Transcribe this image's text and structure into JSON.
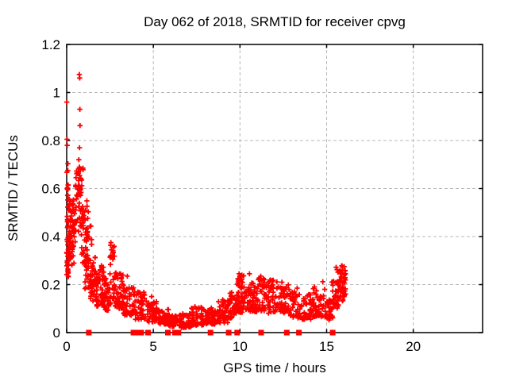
{
  "page": {
    "background": "#ffffff"
  },
  "chart_data": {
    "type": "scatter",
    "title": "Day 062 of 2018, SRMTID for receiver cpvg",
    "xlabel": "GPS time / hours",
    "ylabel": "SRMTID / TECUs",
    "xlim": [
      0,
      24
    ],
    "ylim": [
      0,
      1.2
    ],
    "xticks": [
      0,
      5,
      10,
      15,
      20
    ],
    "xtick_labels": [
      "0",
      "5",
      "10",
      "15",
      "20"
    ],
    "yticks": [
      0,
      0.2,
      0.4,
      0.6,
      0.8,
      1,
      1.2
    ],
    "ytick_labels": [
      "0",
      "0.2",
      "0.4",
      "0.6",
      "0.8",
      "1",
      "1.2"
    ],
    "grid": true,
    "legend": "none",
    "marker": "plus",
    "marker_color": "#ff0000",
    "grid_color": "#b8b8b8",
    "axis_color": "#000000",
    "series_name": "SRMTID",
    "notable_points": [
      [
        0.01,
        0.96
      ],
      [
        0.02,
        0.805
      ],
      [
        0.03,
        0.78
      ],
      [
        0.73,
        1.075
      ],
      [
        0.75,
        1.06
      ],
      [
        0.76,
        0.93
      ],
      [
        0.77,
        0.862
      ],
      [
        0.74,
        0.77
      ],
      [
        0.7,
        0.72
      ],
      [
        1.28,
        0.305
      ],
      [
        2.55,
        0.375
      ],
      [
        2.58,
        0.345
      ],
      [
        2.62,
        0.315
      ],
      [
        3.05,
        0.245
      ],
      [
        3.5,
        0.235
      ],
      [
        4.45,
        0.168
      ],
      [
        4.9,
        0.15
      ],
      [
        9.95,
        0.245
      ],
      [
        10.05,
        0.232
      ],
      [
        10.55,
        0.245
      ],
      [
        11.2,
        0.235
      ],
      [
        11.35,
        0.225
      ],
      [
        11.9,
        0.218
      ],
      [
        12.42,
        0.21
      ],
      [
        13.3,
        0.185
      ],
      [
        14.3,
        0.19
      ],
      [
        14.78,
        0.212
      ],
      [
        15.3,
        0.21
      ],
      [
        15.55,
        0.272
      ],
      [
        15.6,
        0.262
      ],
      [
        15.65,
        0.252
      ],
      [
        15.9,
        0.275
      ]
    ],
    "point_clusters_format": "[x_start, x_end, y_min, y_max, count, skew_toward_min]",
    "point_clusters": [
      [
        0.0,
        0.1,
        0.22,
        0.62,
        40,
        1.0
      ],
      [
        0.0,
        0.08,
        0.55,
        0.72,
        8,
        1.0
      ],
      [
        0.05,
        0.45,
        0.28,
        0.56,
        50,
        1.0
      ],
      [
        0.15,
        0.55,
        0.35,
        0.52,
        30,
        1.0
      ],
      [
        0.5,
        0.95,
        0.38,
        0.7,
        45,
        0.85
      ],
      [
        0.68,
        0.82,
        0.58,
        0.7,
        12,
        1.0
      ],
      [
        0.85,
        1.25,
        0.28,
        0.55,
        40,
        1.1
      ],
      [
        1.05,
        1.45,
        0.18,
        0.45,
        35,
        1.2
      ],
      [
        1.35,
        1.75,
        0.13,
        0.32,
        40,
        1.3
      ],
      [
        1.7,
        2.15,
        0.11,
        0.28,
        55,
        1.4
      ],
      [
        2.15,
        2.55,
        0.09,
        0.24,
        40,
        1.3
      ],
      [
        2.5,
        2.8,
        0.14,
        0.38,
        30,
        1.6
      ],
      [
        2.8,
        3.25,
        0.1,
        0.25,
        45,
        1.3
      ],
      [
        3.25,
        3.9,
        0.07,
        0.2,
        50,
        1.4
      ],
      [
        3.9,
        4.6,
        0.055,
        0.17,
        50,
        1.5
      ],
      [
        4.6,
        5.3,
        0.045,
        0.13,
        50,
        1.4
      ],
      [
        5.3,
        5.9,
        0.035,
        0.1,
        45,
        1.4
      ],
      [
        5.9,
        6.6,
        0.025,
        0.075,
        50,
        1.3
      ],
      [
        6.6,
        7.2,
        0.02,
        0.08,
        50,
        1.3
      ],
      [
        7.2,
        7.9,
        0.03,
        0.11,
        50,
        1.3
      ],
      [
        7.9,
        8.6,
        0.035,
        0.11,
        50,
        1.3
      ],
      [
        8.6,
        9.3,
        0.04,
        0.14,
        50,
        1.3
      ],
      [
        9.3,
        9.8,
        0.06,
        0.17,
        40,
        1.2
      ],
      [
        9.8,
        10.35,
        0.08,
        0.245,
        55,
        1.3
      ],
      [
        10.35,
        11.0,
        0.08,
        0.21,
        55,
        1.2
      ],
      [
        11.0,
        11.55,
        0.09,
        0.235,
        45,
        1.2
      ],
      [
        11.55,
        12.2,
        0.08,
        0.22,
        50,
        1.2
      ],
      [
        12.2,
        12.9,
        0.08,
        0.2,
        50,
        1.2
      ],
      [
        12.9,
        13.5,
        0.06,
        0.17,
        40,
        1.2
      ],
      [
        13.5,
        14.2,
        0.055,
        0.17,
        45,
        1.2
      ],
      [
        14.2,
        14.9,
        0.065,
        0.185,
        45,
        1.2
      ],
      [
        14.9,
        15.35,
        0.05,
        0.14,
        30,
        1.2
      ],
      [
        15.35,
        15.75,
        0.1,
        0.22,
        35,
        1.1
      ],
      [
        15.75,
        16.1,
        0.13,
        0.28,
        45,
        0.9
      ]
    ],
    "zero_flag_x": [
      1.28,
      3.85,
      4.1,
      4.3,
      4.7,
      5.84,
      6.25,
      6.45,
      8.3,
      9.35,
      9.84,
      11.22,
      12.7,
      13.4,
      15.35
    ],
    "prng_seed": 62
  }
}
